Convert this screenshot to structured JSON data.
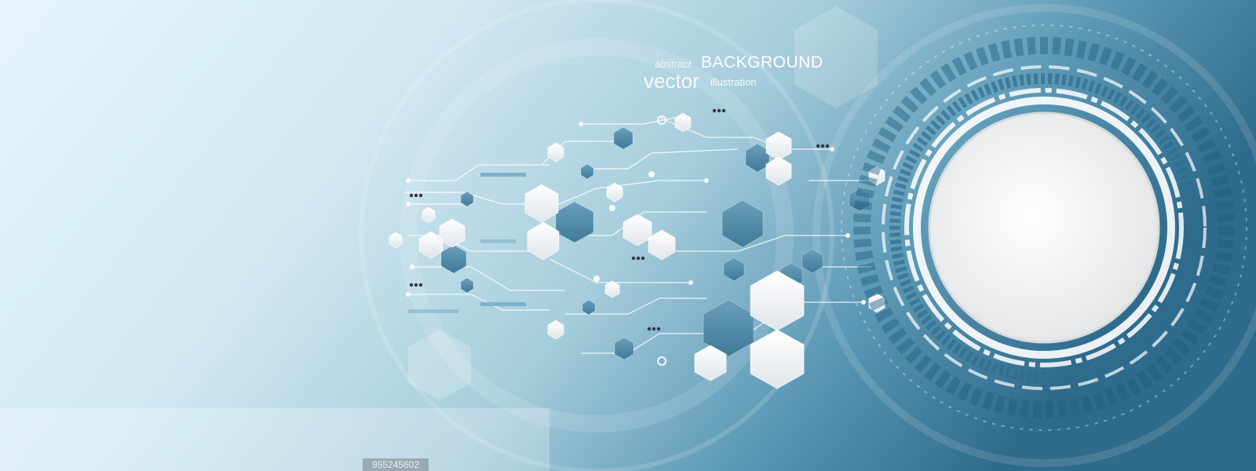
{
  "artwork": {
    "heading_small": "abstract",
    "heading_main": "BACKGROUND",
    "heading_vector": "vector",
    "heading_sub": "illustration",
    "stock_id": "955245602",
    "colors": {
      "bg_light": "#e4f4fa",
      "bg_mid": "#a9d0de",
      "bg_dark": "#2f6d8e",
      "hex_dark": "#4f8aa8",
      "hex_light": "#f2f4f5",
      "circle_center": "#f3f3f3"
    }
  }
}
